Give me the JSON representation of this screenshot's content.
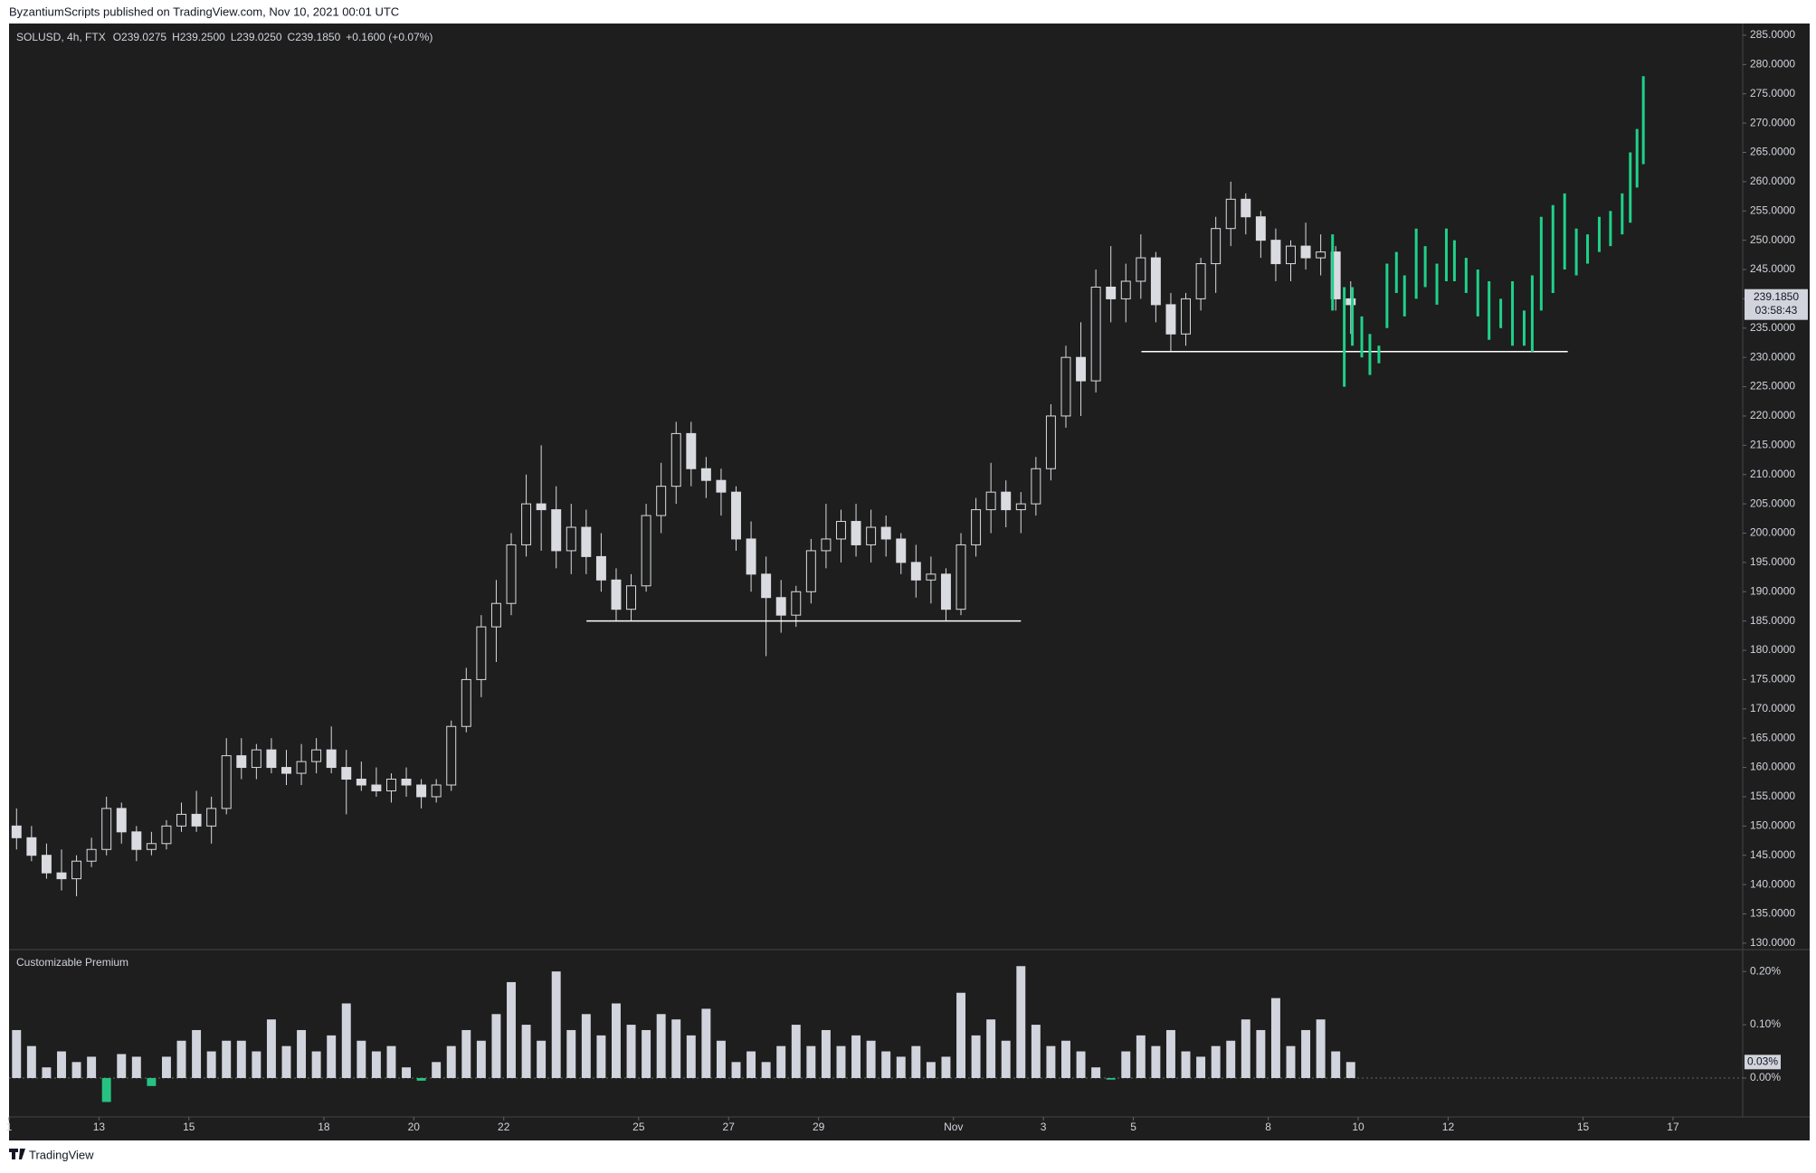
{
  "header": {
    "published": "ByzantiumScripts published on TradingView.com, Nov 10, 2021 00:01 UTC"
  },
  "footer": {
    "brand": "TradingView"
  },
  "chart_data": {
    "type": "candlestick",
    "symbol": "SOLUSD, 4h, FTX",
    "ohlc": [
      "O239.0275",
      "H239.2500",
      "L239.0250",
      "C239.1850",
      "+0.1600 (+0.07%)"
    ],
    "xlim": [
      0,
      38.55
    ],
    "xticks": [
      {
        "value": 0,
        "label": "1"
      },
      {
        "value": 2,
        "label": "13"
      },
      {
        "value": 4,
        "label": "15"
      },
      {
        "value": 7,
        "label": "18"
      },
      {
        "value": 9,
        "label": "20"
      },
      {
        "value": 11,
        "label": "22"
      },
      {
        "value": 14,
        "label": "25"
      },
      {
        "value": 16,
        "label": "27"
      },
      {
        "value": 18,
        "label": "29"
      },
      {
        "value": 21,
        "label": "Nov"
      },
      {
        "value": 23,
        "label": "3"
      },
      {
        "value": 25,
        "label": "5"
      },
      {
        "value": 28,
        "label": "8"
      },
      {
        "value": 30,
        "label": "10"
      },
      {
        "value": 32,
        "label": "12"
      },
      {
        "value": 35,
        "label": "15"
      },
      {
        "value": 37,
        "label": "17"
      }
    ],
    "ylim": [
      128.9,
      287.0
    ],
    "yticks": [
      {
        "value": 130,
        "label": "130.0000"
      },
      {
        "value": 135,
        "label": "135.0000"
      },
      {
        "value": 140,
        "label": "140.0000"
      },
      {
        "value": 145,
        "label": "145.0000"
      },
      {
        "value": 150,
        "label": "150.0000"
      },
      {
        "value": 155,
        "label": "155.0000"
      },
      {
        "value": 160,
        "label": "160.0000"
      },
      {
        "value": 165,
        "label": "165.0000"
      },
      {
        "value": 170,
        "label": "170.0000"
      },
      {
        "value": 175,
        "label": "175.0000"
      },
      {
        "value": 180,
        "label": "180.0000"
      },
      {
        "value": 185,
        "label": "185.0000"
      },
      {
        "value": 190,
        "label": "190.0000"
      },
      {
        "value": 195,
        "label": "195.0000"
      },
      {
        "value": 200,
        "label": "200.0000"
      },
      {
        "value": 205,
        "label": "205.0000"
      },
      {
        "value": 210,
        "label": "210.0000"
      },
      {
        "value": 215,
        "label": "215.0000"
      },
      {
        "value": 220,
        "label": "220.0000"
      },
      {
        "value": 225,
        "label": "225.0000"
      },
      {
        "value": 230,
        "label": "230.0000"
      },
      {
        "value": 235,
        "label": "235.0000"
      },
      {
        "value": 240,
        "label": "240.0000"
      },
      {
        "value": 245,
        "label": "245.0000"
      },
      {
        "value": 250,
        "label": "250.0000"
      },
      {
        "value": 255,
        "label": "255.0000"
      },
      {
        "value": 260,
        "label": "260.0000"
      },
      {
        "value": 265,
        "label": "265.0000"
      },
      {
        "value": 270,
        "label": "270.0000"
      },
      {
        "value": 275,
        "label": "275.0000"
      },
      {
        "value": 280,
        "label": "280.0000"
      },
      {
        "value": 285,
        "label": "285.0000"
      }
    ],
    "last_price": {
      "value": 239.185,
      "label": "239.1850"
    },
    "countdown": "03:58:43",
    "up_color": "#1e1e1e",
    "down_color": "#d9dbe0",
    "wick_color": "#d9dbe0",
    "candles": [
      [
        150,
        153,
        146,
        148
      ],
      [
        148,
        150,
        144,
        145
      ],
      [
        145,
        147,
        141,
        142
      ],
      [
        142,
        146,
        139,
        141
      ],
      [
        141,
        145,
        138,
        144
      ],
      [
        144,
        148,
        143,
        146
      ],
      [
        146,
        155,
        145,
        153
      ],
      [
        153,
        154,
        147,
        149
      ],
      [
        149,
        150,
        144,
        146
      ],
      [
        146,
        149,
        145,
        147
      ],
      [
        147,
        151,
        146,
        150
      ],
      [
        150,
        154,
        149,
        152
      ],
      [
        152,
        156,
        149,
        150
      ],
      [
        150,
        155,
        147,
        153
      ],
      [
        153,
        165,
        152,
        162
      ],
      [
        162,
        165,
        158,
        160
      ],
      [
        160,
        164,
        158,
        163
      ],
      [
        163,
        165,
        159,
        160
      ],
      [
        160,
        163,
        157,
        159
      ],
      [
        159,
        164,
        157,
        161
      ],
      [
        161,
        165,
        159,
        163
      ],
      [
        163,
        167,
        159,
        160
      ],
      [
        160,
        163,
        152,
        158
      ],
      [
        158,
        161,
        156,
        157
      ],
      [
        157,
        160,
        155,
        156
      ],
      [
        156,
        159,
        154,
        158
      ],
      [
        158,
        160,
        155,
        157
      ],
      [
        157,
        158,
        153,
        155
      ],
      [
        155,
        158,
        154,
        157
      ],
      [
        157,
        168,
        156,
        167
      ],
      [
        167,
        177,
        166,
        175
      ],
      [
        175,
        186,
        172,
        184
      ],
      [
        184,
        192,
        178,
        188
      ],
      [
        188,
        200,
        186,
        198
      ],
      [
        198,
        210,
        196,
        205
      ],
      [
        205,
        215,
        197,
        204
      ],
      [
        204,
        208,
        194,
        197
      ],
      [
        197,
        205,
        193,
        201
      ],
      [
        201,
        204,
        193,
        196
      ],
      [
        196,
        200,
        190,
        192
      ],
      [
        192,
        194,
        185,
        187
      ],
      [
        187,
        193,
        185,
        191
      ],
      [
        191,
        205,
        190,
        203
      ],
      [
        203,
        212,
        200,
        208
      ],
      [
        208,
        219,
        205,
        217
      ],
      [
        217,
        219,
        208,
        211
      ],
      [
        211,
        213,
        206,
        209
      ],
      [
        209,
        211,
        203,
        207
      ],
      [
        207,
        208,
        197,
        199
      ],
      [
        199,
        202,
        190,
        193
      ],
      [
        193,
        196,
        179,
        189
      ],
      [
        189,
        192,
        183,
        186
      ],
      [
        186,
        191,
        184,
        190
      ],
      [
        190,
        199,
        188,
        197
      ],
      [
        197,
        205,
        194,
        199
      ],
      [
        199,
        204,
        195,
        202
      ],
      [
        202,
        205,
        196,
        198
      ],
      [
        198,
        204,
        195,
        201
      ],
      [
        201,
        203,
        196,
        199
      ],
      [
        199,
        200,
        193,
        195
      ],
      [
        195,
        198,
        189,
        192
      ],
      [
        192,
        196,
        188,
        193
      ],
      [
        193,
        194,
        185,
        187
      ],
      [
        187,
        200,
        186,
        198
      ],
      [
        198,
        206,
        196,
        204
      ],
      [
        204,
        212,
        200,
        207
      ],
      [
        207,
        209,
        201,
        204
      ],
      [
        204,
        207,
        200,
        205
      ],
      [
        205,
        213,
        203,
        211
      ],
      [
        211,
        222,
        209,
        220
      ],
      [
        220,
        232,
        218,
        230
      ],
      [
        230,
        236,
        220,
        226
      ],
      [
        226,
        245,
        224,
        242
      ],
      [
        242,
        249,
        236,
        240
      ],
      [
        240,
        246,
        236,
        243
      ],
      [
        243,
        251,
        240,
        247
      ],
      [
        247,
        248,
        236,
        239
      ],
      [
        239,
        241,
        231,
        234
      ],
      [
        234,
        241,
        232,
        240
      ],
      [
        240,
        247,
        238,
        246
      ],
      [
        246,
        254,
        241,
        252
      ],
      [
        252,
        260,
        249,
        257
      ],
      [
        257,
        258,
        251,
        254
      ],
      [
        254,
        255,
        247,
        250
      ],
      [
        250,
        252,
        243,
        246
      ],
      [
        246,
        250,
        243,
        249
      ],
      [
        249,
        253,
        245,
        247
      ],
      [
        247,
        251,
        244,
        248
      ],
      [
        248,
        249,
        238,
        240
      ],
      [
        240,
        243,
        234,
        239
      ]
    ],
    "projection": {
      "color": "#1fd18a",
      "x": [
        29.43,
        29.69,
        29.87,
        30.08,
        30.26,
        30.46,
        30.64,
        30.85,
        31.03,
        31.29,
        31.49,
        31.75,
        31.96,
        32.14,
        32.4,
        32.66,
        32.91,
        33.17,
        33.43,
        33.69,
        33.87,
        34.07,
        34.33,
        34.59,
        34.85,
        35.1,
        35.36,
        35.61,
        35.87,
        36.05,
        36.2,
        36.34
      ],
      "high": [
        251,
        242,
        242,
        237,
        234,
        232,
        246,
        248,
        244,
        252,
        249,
        246,
        252,
        250,
        247,
        245,
        243,
        240,
        243,
        238,
        244,
        254,
        256,
        258,
        252,
        251,
        254,
        255,
        258,
        265,
        269,
        278
      ],
      "low": [
        238,
        225,
        232,
        230,
        227,
        229,
        235,
        241,
        237,
        240,
        242,
        239,
        243,
        243,
        241,
        237,
        233,
        235,
        232,
        232,
        231,
        238,
        241,
        245,
        244,
        246,
        248,
        249,
        251,
        253,
        259,
        263
      ]
    },
    "levels": [
      {
        "price": 185,
        "x": [
          12.84,
          22.5
        ]
      },
      {
        "price": 231,
        "x": [
          25.18,
          34.66
        ]
      }
    ],
    "level_color": "#ffffff",
    "premium": {
      "title": "Customizable Premium",
      "color": "#d1d4dc",
      "negative_color": "#26c281",
      "ylim": [
        -0.073,
        0.241
      ],
      "yticks": [
        {
          "value": 0,
          "label": "0.00%"
        },
        {
          "value": 0.1,
          "label": "0.10%"
        },
        {
          "value": 0.2,
          "label": "0.20%"
        }
      ],
      "last": {
        "value": 0.03,
        "label": "0.03%"
      },
      "values": [
        0.09,
        0.06,
        0.02,
        0.05,
        0.03,
        0.04,
        -0.045,
        0.045,
        0.04,
        -0.015,
        0.04,
        0.07,
        0.09,
        0.05,
        0.07,
        0.07,
        0.05,
        0.11,
        0.06,
        0.09,
        0.05,
        0.08,
        0.14,
        0.07,
        0.05,
        0.06,
        0.02,
        -0.005,
        0.03,
        0.06,
        0.09,
        0.07,
        0.12,
        0.18,
        0.1,
        0.07,
        0.2,
        0.09,
        0.12,
        0.08,
        0.14,
        0.1,
        0.09,
        0.12,
        0.11,
        0.08,
        0.13,
        0.07,
        0.03,
        0.05,
        0.03,
        0.06,
        0.1,
        0.06,
        0.09,
        0.06,
        0.08,
        0.07,
        0.05,
        0.04,
        0.06,
        0.03,
        0.04,
        0.16,
        0.08,
        0.11,
        0.07,
        0.21,
        0.1,
        0.06,
        0.07,
        0.05,
        0.02,
        -0.003,
        0.05,
        0.08,
        0.06,
        0.09,
        0.05,
        0.04,
        0.06,
        0.07,
        0.11,
        0.09,
        0.15,
        0.06,
        0.09,
        0.11,
        0.05,
        0.03
      ]
    }
  }
}
